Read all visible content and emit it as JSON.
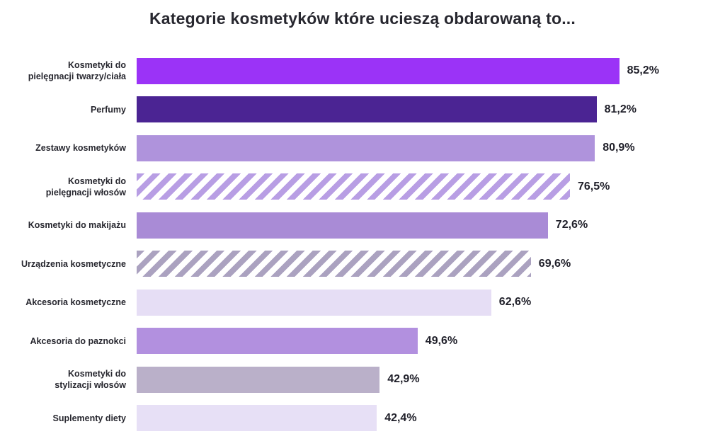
{
  "title": "Kategorie kosmetyków które ucieszą obdarowaną to...",
  "chart_data": {
    "type": "bar",
    "orientation": "horizontal",
    "title": "Kategorie kosmetyków które ucieszą obdarowaną to...",
    "xlabel": "",
    "ylabel": "",
    "xlim": [
      0,
      100
    ],
    "grid": false,
    "legend": "none",
    "value_format": "polish decimal comma, percent",
    "categories": [
      "Kosmetyki do\npielęgnacji twarzy/ciała",
      "Perfumy",
      "Zestawy kosmetyków",
      "Kosmetyki do\npielęgnacji włosów",
      "Kosmetyki do makijażu",
      "Urządzenia kosmetyczne",
      "Akcesoria kosmetyczne",
      "Akcesoria do paznokci",
      "Kosmetyki do\nstylizacji włosów",
      "Suplementy diety"
    ],
    "values": [
      85.2,
      81.2,
      80.9,
      76.5,
      72.6,
      69.6,
      62.6,
      49.6,
      42.9,
      42.4
    ],
    "value_labels": [
      "85,2%",
      "81,2%",
      "80,9%",
      "76,5%",
      "72,6%",
      "69,6%",
      "62,6%",
      "49,6%",
      "42,9%",
      "42,4%"
    ],
    "bar_styles": [
      {
        "fill": "#9b33f7",
        "pattern": "solid"
      },
      {
        "fill": "#4b2493",
        "pattern": "solid"
      },
      {
        "fill": "#af93dc",
        "pattern": "solid"
      },
      {
        "fill": "#b89ee4",
        "pattern": "diagonal-stripes"
      },
      {
        "fill": "#a98bd6",
        "pattern": "solid"
      },
      {
        "fill": "#aba2c0",
        "pattern": "diagonal-stripes"
      },
      {
        "fill": "#e6def5",
        "pattern": "solid"
      },
      {
        "fill": "#b290df",
        "pattern": "solid"
      },
      {
        "fill": "#bab0c9",
        "pattern": "solid"
      },
      {
        "fill": "#e7e0f6",
        "pattern": "solid"
      }
    ]
  }
}
